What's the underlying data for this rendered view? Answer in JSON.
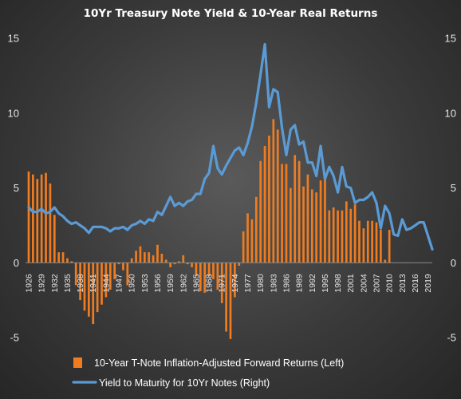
{
  "chart_data": {
    "type": "bar+line",
    "title": "10Yr Treasury Note Yield & 10-Year Real Returns",
    "left_axis": {
      "range": [
        -5,
        15
      ],
      "ticks": [
        "-5",
        "0",
        "5",
        "10",
        "15"
      ]
    },
    "right_axis": {
      "range": [
        -5,
        15
      ],
      "ticks": [
        "-5",
        "0",
        "5",
        "10",
        "15"
      ]
    },
    "x_tick_labels": [
      "1926",
      "1929",
      "1932",
      "1935",
      "1938",
      "1941",
      "1944",
      "1947",
      "1950",
      "1953",
      "1956",
      "1959",
      "1962",
      "1965",
      "1968",
      "1971",
      "1974",
      "1977",
      "1980",
      "1983",
      "1986",
      "1989",
      "1992",
      "1995",
      "1998",
      "2001",
      "2004",
      "2007",
      "2010",
      "2013",
      "2016",
      "2019"
    ],
    "x_range": [
      1926,
      2020
    ],
    "series": [
      {
        "name": "10-Year T-Note Inflation-Adjusted Forward Returns (Left)",
        "type": "bar",
        "color": "#f07c1f",
        "x": [
          1926,
          1927,
          1928,
          1929,
          1930,
          1931,
          1932,
          1933,
          1934,
          1935,
          1936,
          1937,
          1938,
          1939,
          1940,
          1941,
          1942,
          1943,
          1944,
          1945,
          1946,
          1947,
          1948,
          1949,
          1950,
          1951,
          1952,
          1953,
          1954,
          1955,
          1956,
          1957,
          1958,
          1959,
          1960,
          1961,
          1962,
          1963,
          1964,
          1965,
          1966,
          1967,
          1968,
          1969,
          1970,
          1971,
          1972,
          1973,
          1974,
          1975,
          1976,
          1977,
          1978,
          1979,
          1980,
          1981,
          1982,
          1983,
          1984,
          1985,
          1986,
          1987,
          1988,
          1989,
          1990,
          1991,
          1992,
          1993,
          1994,
          1995,
          1996,
          1997,
          1998,
          1999,
          2000,
          2001,
          2002,
          2003,
          2004,
          2005,
          2006,
          2007,
          2008,
          2009,
          2010
        ],
        "values": [
          6.1,
          5.9,
          5.6,
          5.9,
          6.0,
          5.3,
          3.2,
          0.7,
          0.7,
          0.3,
          0.1,
          -1.5,
          -2.5,
          -3.2,
          -3.6,
          -4.1,
          -3.3,
          -2.8,
          -2.3,
          -1.8,
          -1.1,
          -0.1,
          -0.5,
          -1.5,
          0.3,
          0.8,
          1.1,
          0.7,
          0.7,
          0.5,
          1.2,
          0.6,
          0.2,
          -0.3,
          -0.1,
          0.1,
          0.5,
          -0.1,
          -0.3,
          -0.9,
          -1.9,
          -2.0,
          -0.9,
          -1.1,
          -1.8,
          -2.7,
          -4.6,
          -5.1,
          -2.3,
          -0.2,
          2.1,
          3.3,
          2.9,
          4.4,
          6.8,
          7.8,
          8.5,
          9.6,
          8.9,
          6.6,
          6.6,
          5.0,
          7.2,
          6.8,
          5.1,
          5.9,
          4.9,
          4.7,
          5.5,
          6.0,
          3.5,
          3.7,
          3.5,
          3.5,
          4.1,
          3.6,
          3.9,
          2.8,
          2.3,
          2.8,
          2.8,
          2.7,
          2.2,
          0.2,
          2.2
        ]
      },
      {
        "name": "Yield to Maturity for 10Yr Notes (Right)",
        "type": "line",
        "color": "#5b9bd5",
        "x": [
          1926,
          1927,
          1928,
          1929,
          1930,
          1931,
          1932,
          1933,
          1934,
          1935,
          1936,
          1937,
          1938,
          1939,
          1940,
          1941,
          1942,
          1943,
          1944,
          1945,
          1946,
          1947,
          1948,
          1949,
          1950,
          1951,
          1952,
          1953,
          1954,
          1955,
          1956,
          1957,
          1958,
          1959,
          1960,
          1961,
          1962,
          1963,
          1964,
          1965,
          1966,
          1967,
          1968,
          1969,
          1970,
          1971,
          1972,
          1973,
          1974,
          1975,
          1976,
          1977,
          1978,
          1979,
          1980,
          1981,
          1982,
          1983,
          1984,
          1985,
          1986,
          1987,
          1988,
          1989,
          1990,
          1991,
          1992,
          1993,
          1994,
          1995,
          1996,
          1997,
          1998,
          1999,
          2000,
          2001,
          2002,
          2003,
          2004,
          2005,
          2006,
          2007,
          2008,
          2009,
          2010,
          2011,
          2012,
          2013,
          2014,
          2015,
          2016,
          2017,
          2018,
          2019,
          2020
        ],
        "values": [
          3.7,
          3.4,
          3.4,
          3.6,
          3.3,
          3.4,
          3.7,
          3.3,
          3.1,
          2.8,
          2.6,
          2.7,
          2.5,
          2.3,
          2.0,
          2.4,
          2.4,
          2.4,
          2.3,
          2.1,
          2.3,
          2.3,
          2.4,
          2.2,
          2.5,
          2.6,
          2.8,
          2.6,
          2.9,
          2.8,
          3.4,
          3.2,
          3.8,
          4.4,
          3.8,
          4.0,
          3.8,
          4.1,
          4.2,
          4.6,
          4.6,
          5.6,
          6.0,
          7.8,
          6.3,
          5.9,
          6.5,
          7.0,
          7.5,
          7.7,
          7.2,
          8.0,
          9.1,
          10.7,
          12.6,
          14.6,
          10.4,
          11.6,
          11.4,
          9.0,
          7.2,
          8.9,
          9.2,
          7.9,
          8.1,
          6.7,
          6.7,
          5.8,
          7.8,
          5.6,
          6.4,
          5.8,
          4.7,
          6.4,
          5.1,
          5.0,
          4.0,
          4.2,
          4.2,
          4.4,
          4.7,
          4.0,
          2.3,
          3.8,
          3.3,
          1.9,
          1.8,
          2.9,
          2.2,
          2.3,
          2.5,
          2.7,
          2.7,
          1.8,
          0.9
        ]
      }
    ],
    "legend_position": "bottom",
    "grid": false
  }
}
